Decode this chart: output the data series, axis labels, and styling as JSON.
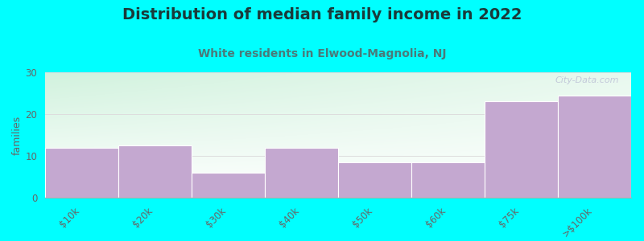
{
  "title": "Distribution of median family income in 2022",
  "subtitle": "White residents in Elwood-Magnolia, NJ",
  "categories": [
    "$10k",
    "$20k",
    "$30k",
    "$40k",
    "$50k",
    "$60k",
    "$75k",
    ">$100k"
  ],
  "values": [
    12,
    12.5,
    6,
    12,
    8.5,
    8.5,
    23,
    24.5
  ],
  "bar_color": "#C4A8D0",
  "bar_edgecolor": "#ffffff",
  "background_color": "#00FFFF",
  "plot_bg_color_topleft": "#d4edda",
  "plot_bg_color_white": "#ffffff",
  "ylabel": "families",
  "ylim": [
    0,
    30
  ],
  "yticks": [
    0,
    10,
    20,
    30
  ],
  "title_fontsize": 14,
  "subtitle_fontsize": 10,
  "watermark": "City-Data.com",
  "title_color": "#1a3a3a",
  "subtitle_color": "#4a7a7a",
  "tick_color": "#666666",
  "grid_color": "#dddddd",
  "spine_color": "#aaaaaa"
}
